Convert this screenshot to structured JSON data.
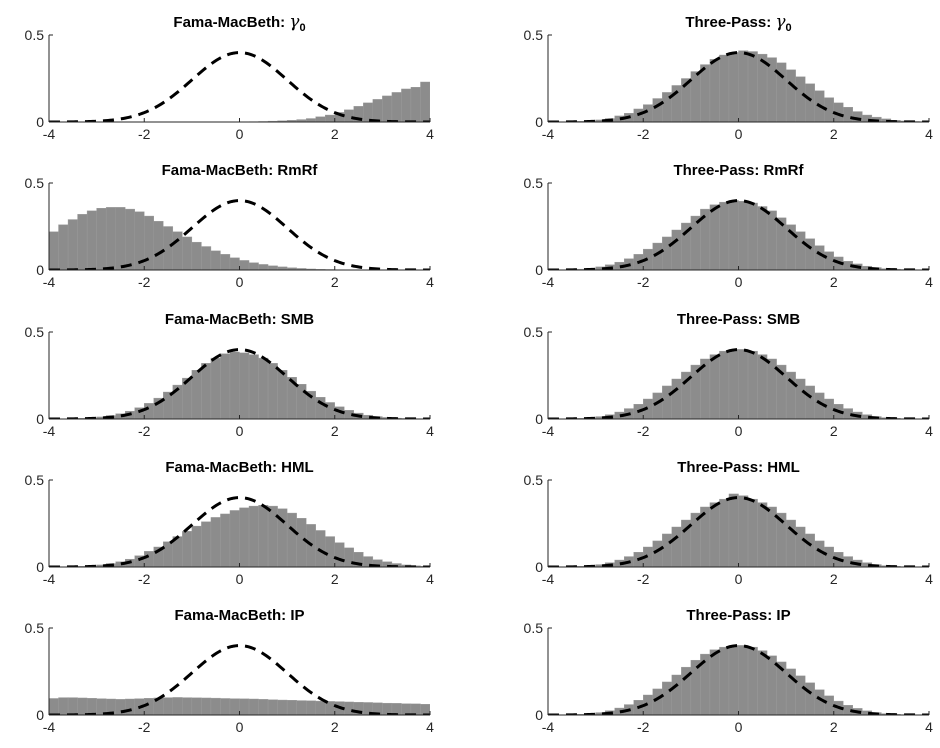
{
  "figure": {
    "type": "histogram-grid",
    "rows": 5,
    "cols": 2,
    "xlim": [
      -4,
      4
    ],
    "ylim": [
      0,
      0.5
    ],
    "x_ticks": [
      "-4",
      "-2",
      "0",
      "2",
      "4"
    ],
    "y_ticks": [
      "0",
      "0.5"
    ],
    "colors": {
      "bars": "#8c8c8c",
      "reference_line": "#000000"
    },
    "reference_curve": "standard normal pdf (dashed)"
  },
  "chart_data": [
    {
      "type": "bar",
      "title": {
        "prefix": "Fama-MacBeth: ",
        "greek": "γ",
        "sub": "0",
        "text": ""
      },
      "bin_width": 0.2,
      "bin_start": -4,
      "values": [
        0,
        0,
        0,
        0,
        0,
        0,
        0,
        0,
        0,
        0,
        0,
        0,
        0,
        0,
        0,
        0,
        0,
        0,
        0,
        0,
        0.001,
        0.002,
        0.003,
        0.005,
        0.007,
        0.01,
        0.014,
        0.02,
        0.03,
        0.04,
        0.055,
        0.07,
        0.09,
        0.11,
        0.13,
        0.15,
        0.17,
        0.19,
        0.2,
        0.23
      ]
    },
    {
      "type": "bar",
      "title": {
        "prefix": "Three-Pass: ",
        "greek": "γ",
        "sub": "0",
        "text": ""
      },
      "bin_width": 0.2,
      "bin_start": -4,
      "values": [
        0,
        0,
        0.002,
        0.004,
        0.007,
        0.012,
        0.02,
        0.035,
        0.05,
        0.075,
        0.1,
        0.135,
        0.17,
        0.21,
        0.25,
        0.29,
        0.33,
        0.36,
        0.385,
        0.4,
        0.41,
        0.405,
        0.39,
        0.37,
        0.34,
        0.3,
        0.26,
        0.22,
        0.18,
        0.14,
        0.11,
        0.085,
        0.06,
        0.04,
        0.028,
        0.018,
        0.01,
        0.006,
        0.003,
        0.002
      ]
    },
    {
      "type": "bar",
      "title": {
        "prefix": "",
        "greek": "",
        "sub": "",
        "text": "Fama-MacBeth: RmRf"
      },
      "bin_width": 0.2,
      "bin_start": -4,
      "values": [
        0.22,
        0.26,
        0.29,
        0.32,
        0.34,
        0.355,
        0.36,
        0.36,
        0.35,
        0.335,
        0.31,
        0.28,
        0.25,
        0.22,
        0.19,
        0.16,
        0.135,
        0.11,
        0.09,
        0.07,
        0.055,
        0.042,
        0.032,
        0.024,
        0.018,
        0.013,
        0.009,
        0.006,
        0.004,
        0.003,
        0.002,
        0.001,
        0.001,
        0,
        0,
        0,
        0,
        0,
        0,
        0
      ]
    },
    {
      "type": "bar",
      "title": {
        "prefix": "",
        "greek": "",
        "sub": "",
        "text": "Three-Pass: RmRf"
      },
      "bin_width": 0.2,
      "bin_start": -4,
      "values": [
        0,
        0.001,
        0.003,
        0.005,
        0.01,
        0.018,
        0.03,
        0.045,
        0.065,
        0.09,
        0.12,
        0.155,
        0.19,
        0.23,
        0.27,
        0.31,
        0.35,
        0.375,
        0.39,
        0.4,
        0.395,
        0.385,
        0.365,
        0.34,
        0.3,
        0.26,
        0.22,
        0.18,
        0.14,
        0.105,
        0.075,
        0.05,
        0.035,
        0.022,
        0.014,
        0.008,
        0.005,
        0.003,
        0.001,
        0.001
      ]
    },
    {
      "type": "bar",
      "title": {
        "prefix": "",
        "greek": "",
        "sub": "",
        "text": "Fama-MacBeth: SMB"
      },
      "bin_width": 0.2,
      "bin_start": -4,
      "values": [
        0,
        0.001,
        0.002,
        0.004,
        0.007,
        0.012,
        0.02,
        0.03,
        0.045,
        0.065,
        0.09,
        0.12,
        0.155,
        0.195,
        0.235,
        0.28,
        0.32,
        0.35,
        0.375,
        0.385,
        0.38,
        0.37,
        0.35,
        0.32,
        0.28,
        0.24,
        0.2,
        0.16,
        0.125,
        0.095,
        0.07,
        0.05,
        0.034,
        0.022,
        0.014,
        0.009,
        0.005,
        0.003,
        0.002,
        0.001
      ]
    },
    {
      "type": "bar",
      "title": {
        "prefix": "",
        "greek": "",
        "sub": "",
        "text": "Three-Pass: SMB"
      },
      "bin_width": 0.2,
      "bin_start": -4,
      "values": [
        0,
        0.001,
        0.002,
        0.004,
        0.008,
        0.014,
        0.025,
        0.04,
        0.06,
        0.085,
        0.115,
        0.15,
        0.19,
        0.23,
        0.27,
        0.31,
        0.345,
        0.37,
        0.39,
        0.4,
        0.4,
        0.39,
        0.37,
        0.345,
        0.31,
        0.27,
        0.23,
        0.19,
        0.15,
        0.115,
        0.085,
        0.06,
        0.04,
        0.025,
        0.014,
        0.008,
        0.004,
        0.002,
        0.001,
        0
      ]
    },
    {
      "type": "bar",
      "title": {
        "prefix": "",
        "greek": "",
        "sub": "",
        "text": "Fama-MacBeth: HML"
      },
      "bin_width": 0.2,
      "bin_start": -4,
      "values": [
        0,
        0.001,
        0.002,
        0.004,
        0.007,
        0.012,
        0.02,
        0.03,
        0.045,
        0.065,
        0.09,
        0.115,
        0.145,
        0.175,
        0.205,
        0.235,
        0.26,
        0.285,
        0.305,
        0.325,
        0.34,
        0.35,
        0.355,
        0.35,
        0.335,
        0.31,
        0.28,
        0.245,
        0.21,
        0.175,
        0.14,
        0.11,
        0.085,
        0.06,
        0.042,
        0.03,
        0.02,
        0.012,
        0.007,
        0.004
      ]
    },
    {
      "type": "bar",
      "title": {
        "prefix": "",
        "greek": "",
        "sub": "",
        "text": "Three-Pass: HML"
      },
      "bin_width": 0.2,
      "bin_start": -4,
      "values": [
        0,
        0.001,
        0.002,
        0.004,
        0.008,
        0.014,
        0.025,
        0.04,
        0.06,
        0.085,
        0.115,
        0.15,
        0.19,
        0.23,
        0.27,
        0.31,
        0.345,
        0.37,
        0.39,
        0.42,
        0.41,
        0.39,
        0.37,
        0.345,
        0.31,
        0.27,
        0.23,
        0.19,
        0.15,
        0.115,
        0.085,
        0.06,
        0.04,
        0.025,
        0.014,
        0.008,
        0.004,
        0.002,
        0.001,
        0
      ]
    },
    {
      "type": "bar",
      "title": {
        "prefix": "",
        "greek": "",
        "sub": "",
        "text": "Fama-MacBeth: IP"
      },
      "bin_width": 0.2,
      "bin_start": -4,
      "values": [
        0.095,
        0.1,
        0.1,
        0.098,
        0.096,
        0.094,
        0.092,
        0.09,
        0.092,
        0.094,
        0.096,
        0.098,
        0.1,
        0.101,
        0.1,
        0.099,
        0.098,
        0.097,
        0.095,
        0.094,
        0.093,
        0.092,
        0.09,
        0.088,
        0.086,
        0.085,
        0.083,
        0.082,
        0.08,
        0.078,
        0.077,
        0.075,
        0.073,
        0.072,
        0.07,
        0.068,
        0.067,
        0.065,
        0.064,
        0.062
      ]
    },
    {
      "type": "bar",
      "title": {
        "prefix": "",
        "greek": "",
        "sub": "",
        "text": "Three-Pass: IP"
      },
      "bin_width": 0.2,
      "bin_start": -4,
      "values": [
        0,
        0.001,
        0.002,
        0.004,
        0.008,
        0.014,
        0.025,
        0.04,
        0.06,
        0.085,
        0.115,
        0.15,
        0.19,
        0.23,
        0.275,
        0.315,
        0.35,
        0.375,
        0.39,
        0.4,
        0.4,
        0.39,
        0.37,
        0.34,
        0.305,
        0.265,
        0.225,
        0.185,
        0.145,
        0.11,
        0.08,
        0.056,
        0.038,
        0.024,
        0.014,
        0.008,
        0.004,
        0.002,
        0.001,
        0
      ]
    }
  ]
}
